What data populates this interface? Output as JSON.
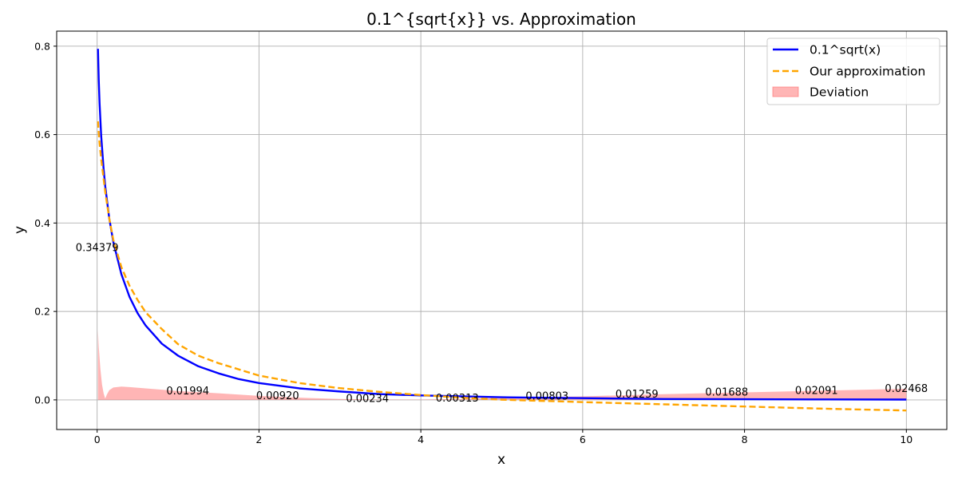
{
  "chart_data": {
    "type": "line",
    "title": "0.1^{sqrt{x}} vs. Approximation",
    "xlabel": "x",
    "ylabel": "y",
    "xlim": [
      -0.5,
      10.5
    ],
    "ylim": [
      -0.067,
      0.834
    ],
    "x_ticks": [
      0,
      2,
      4,
      6,
      8,
      10
    ],
    "y_ticks": [
      0.0,
      0.2,
      0.4,
      0.6,
      0.8
    ],
    "grid": true,
    "legend_position": "top-right",
    "series": [
      {
        "name": "0.1^sqrt(x)",
        "style": "solid",
        "color": "#0000ff",
        "x": [
          0.01,
          0.02,
          0.03,
          0.05,
          0.08,
          0.1,
          0.15,
          0.2,
          0.3,
          0.4,
          0.5,
          0.6,
          0.8,
          1.0,
          1.25,
          1.5,
          1.75,
          2.0,
          2.5,
          3.0,
          3.5,
          4.0,
          4.5,
          5.0,
          6.0,
          7.0,
          8.0,
          9.0,
          10.0
        ],
        "y": [
          0.794,
          0.722,
          0.671,
          0.597,
          0.522,
          0.483,
          0.41,
          0.357,
          0.284,
          0.233,
          0.196,
          0.168,
          0.127,
          0.1,
          0.076,
          0.06,
          0.047,
          0.038,
          0.026,
          0.019,
          0.013,
          0.01,
          0.008,
          0.006,
          0.004,
          0.002,
          0.0015,
          0.001,
          0.0007
        ]
      },
      {
        "name": "Our approximation",
        "style": "dashed",
        "color": "#ffa500",
        "x": [
          0.01,
          0.03,
          0.05,
          0.1,
          0.15,
          0.2,
          0.3,
          0.4,
          0.5,
          0.6,
          0.8,
          1.0,
          1.25,
          1.5,
          2.0,
          2.5,
          3.0,
          3.5,
          4.0,
          4.5,
          5.0,
          6.0,
          7.0,
          8.0,
          9.0,
          10.0
        ],
        "y": [
          0.63,
          0.58,
          0.545,
          0.47,
          0.41,
          0.362,
          0.3,
          0.258,
          0.226,
          0.198,
          0.16,
          0.126,
          0.1,
          0.083,
          0.055,
          0.038,
          0.0265,
          0.018,
          0.011,
          0.005,
          0.0005,
          -0.005,
          -0.01,
          -0.015,
          -0.02,
          -0.024
        ]
      },
      {
        "name": "Deviation",
        "style": "fill",
        "color": "#ff6b6b",
        "x": [
          0.01,
          0.02,
          0.04,
          0.06,
          0.08,
          0.1,
          0.12,
          0.15,
          0.2,
          0.3,
          0.4,
          0.6,
          0.8,
          1.0,
          1.5,
          2.0,
          2.5,
          3.0,
          3.5,
          4.0,
          4.5,
          5.0,
          6.0,
          7.0,
          8.0,
          9.0,
          10.0
        ],
        "y": [
          0.158,
          0.12,
          0.07,
          0.035,
          0.015,
          0.003,
          0.012,
          0.022,
          0.028,
          0.03,
          0.029,
          0.026,
          0.023,
          0.02,
          0.015,
          0.009,
          0.005,
          0.002,
          0.001,
          0.0007,
          0.002,
          0.005,
          0.008,
          0.013,
          0.017,
          0.021,
          0.025
        ]
      }
    ],
    "annotations": [
      {
        "text": "0.34379",
        "x": 0.0,
        "y": 0.34379
      },
      {
        "text": "0.01994",
        "x": 1.12,
        "y": 0.01994
      },
      {
        "text": "0.00920",
        "x": 2.23,
        "y": 0.0092
      },
      {
        "text": "0.00234",
        "x": 3.34,
        "y": 0.00234
      },
      {
        "text": "0.00313",
        "x": 4.45,
        "y": 0.00313
      },
      {
        "text": "0.00803",
        "x": 5.56,
        "y": 0.00803
      },
      {
        "text": "0.01259",
        "x": 6.67,
        "y": 0.01259
      },
      {
        "text": "0.01688",
        "x": 7.78,
        "y": 0.01688
      },
      {
        "text": "0.02091",
        "x": 8.89,
        "y": 0.02091
      },
      {
        "text": "0.02468",
        "x": 10.0,
        "y": 0.02468
      }
    ]
  }
}
